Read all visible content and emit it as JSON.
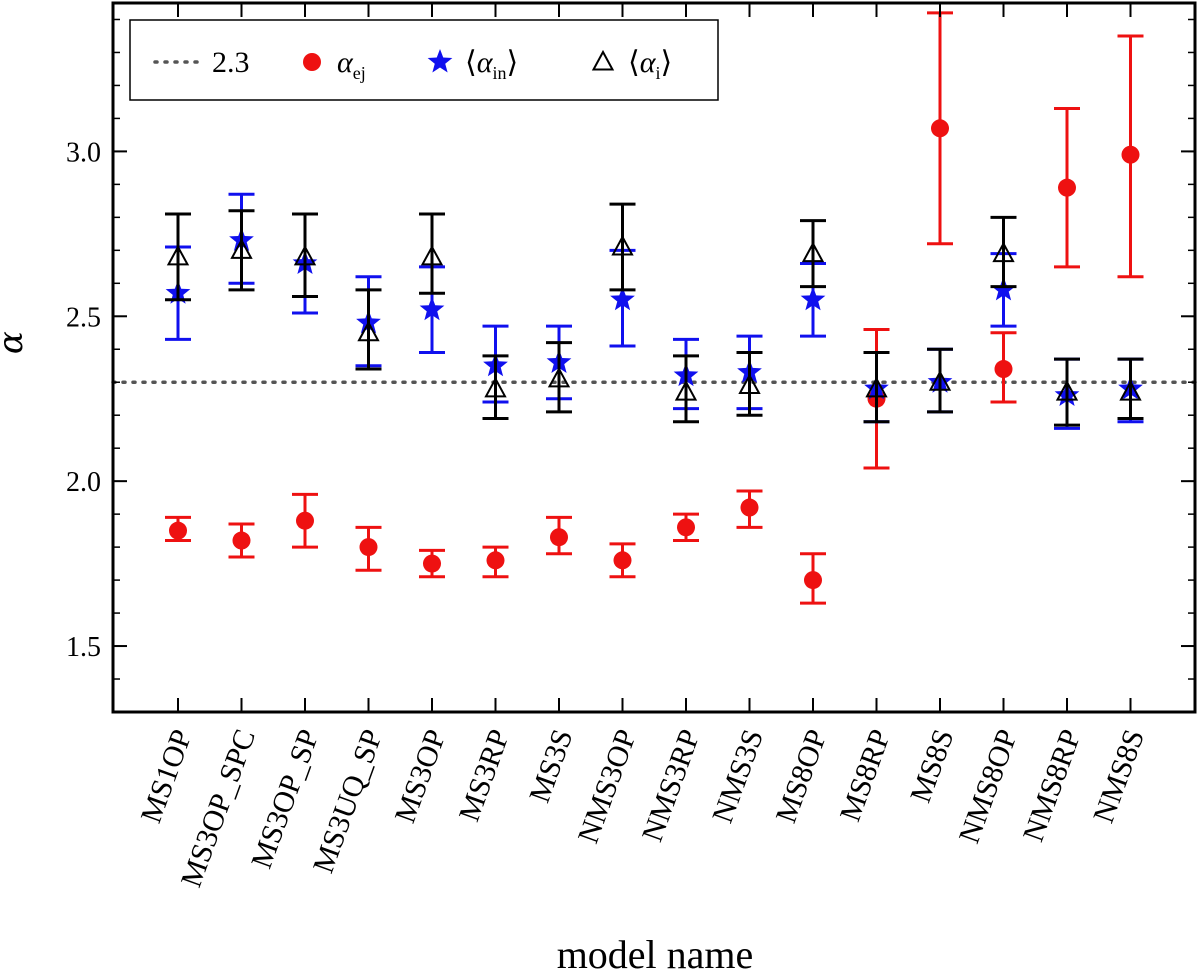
{
  "chart_data": {
    "type": "scatter",
    "xlabel": "model name",
    "ylabel": "α",
    "ylim": [
      1.3,
      3.45
    ],
    "yticks": [
      1.5,
      2.0,
      2.5,
      3.0
    ],
    "ytick_labels": [
      "1.5",
      "2.0",
      "2.5",
      "3.0"
    ],
    "grid": false,
    "legend_position": "top-left",
    "categories": [
      "MS1OP",
      "MS3OP_SPC",
      "MS3OP_SP",
      "MS3UQ_SP",
      "MS3OP",
      "MS3RP",
      "MS3S",
      "NMS3OP",
      "NMS3RP",
      "NMS3S",
      "MS8OP",
      "MS8RP",
      "MS8S",
      "NMS8OP",
      "NMS8RP",
      "NMS8S"
    ],
    "reference_line": {
      "value": 2.3,
      "label": "2.3",
      "style": "dotted",
      "color": "#555555"
    },
    "series": [
      {
        "name": "α_ej",
        "label_main": "α",
        "label_sub": "ej",
        "marker": "circle",
        "color": "#ee1111",
        "values": [
          1.85,
          1.82,
          1.88,
          1.8,
          1.75,
          1.76,
          1.83,
          1.76,
          1.86,
          1.92,
          1.7,
          2.25,
          3.07,
          2.34,
          2.89,
          2.99
        ],
        "err_low": [
          1.82,
          1.77,
          1.8,
          1.73,
          1.71,
          1.71,
          1.78,
          1.71,
          1.82,
          1.86,
          1.63,
          2.04,
          2.72,
          2.24,
          2.65,
          2.62
        ],
        "err_high": [
          1.89,
          1.87,
          1.96,
          1.86,
          1.79,
          1.8,
          1.89,
          1.81,
          1.9,
          1.97,
          1.78,
          2.46,
          3.42,
          2.45,
          3.13,
          3.35
        ]
      },
      {
        "name": "⟨α_in⟩",
        "label_main": "α",
        "label_sub": "in",
        "marker": "star",
        "color": "#1010ee",
        "values": [
          2.57,
          2.73,
          2.66,
          2.48,
          2.52,
          2.35,
          2.36,
          2.55,
          2.32,
          2.33,
          2.55,
          2.28,
          2.3,
          2.58,
          2.26,
          2.28
        ],
        "err_low": [
          2.43,
          2.6,
          2.51,
          2.35,
          2.39,
          2.24,
          2.25,
          2.41,
          2.22,
          2.22,
          2.44,
          2.18,
          2.21,
          2.47,
          2.16,
          2.18
        ],
        "err_high": [
          2.71,
          2.87,
          2.81,
          2.62,
          2.65,
          2.47,
          2.47,
          2.7,
          2.43,
          2.44,
          2.66,
          2.39,
          2.4,
          2.69,
          2.37,
          2.37
        ]
      },
      {
        "name": "⟨α_i⟩",
        "label_main": "α",
        "label_sub": "i",
        "marker": "triangle-open",
        "color": "#000000",
        "values": [
          2.68,
          2.7,
          2.68,
          2.45,
          2.68,
          2.28,
          2.31,
          2.71,
          2.27,
          2.29,
          2.69,
          2.28,
          2.3,
          2.69,
          2.27,
          2.27
        ],
        "err_low": [
          2.55,
          2.58,
          2.56,
          2.34,
          2.57,
          2.19,
          2.21,
          2.58,
          2.18,
          2.2,
          2.59,
          2.18,
          2.21,
          2.59,
          2.17,
          2.19
        ],
        "err_high": [
          2.81,
          2.82,
          2.81,
          2.58,
          2.81,
          2.38,
          2.42,
          2.84,
          2.38,
          2.39,
          2.79,
          2.39,
          2.4,
          2.8,
          2.37,
          2.37
        ]
      }
    ]
  }
}
